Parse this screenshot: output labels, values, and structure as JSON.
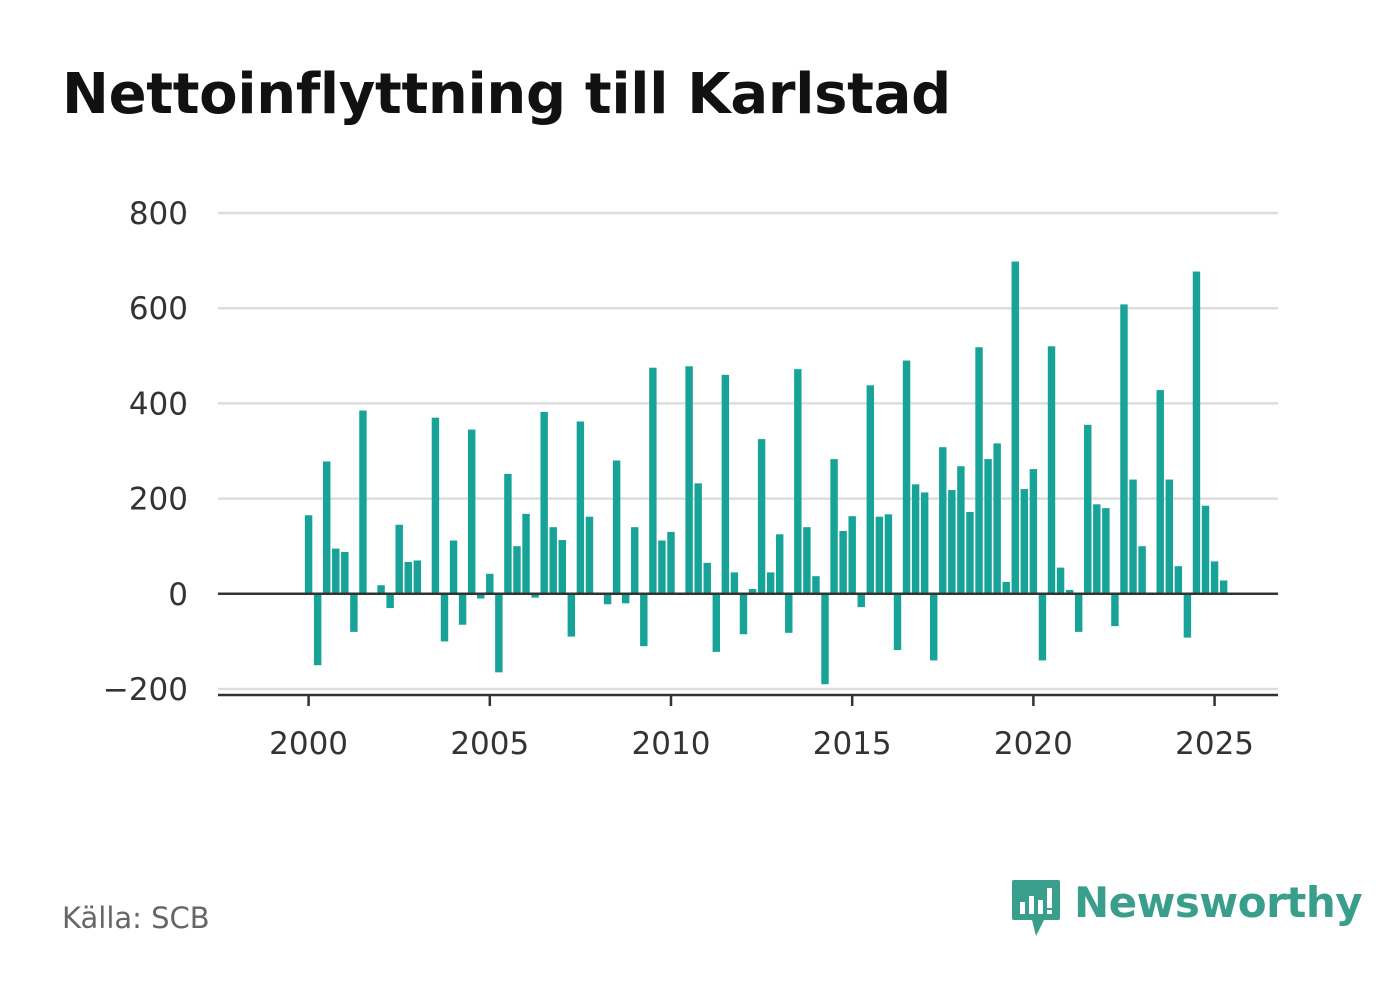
{
  "title": "Nettoinflyttning till Karlstad",
  "source": "Källa: SCB",
  "brand": {
    "name": "Newsworthy",
    "icon": "newsworthy-logo-icon",
    "color": "#3a9e8c"
  },
  "colors": {
    "bar": "#17a398",
    "grid": "#dddddd",
    "axis": "#333333"
  },
  "chart_data": {
    "type": "bar",
    "title": "Nettoinflyttning till Karlstad",
    "xlabel": "",
    "ylabel": "",
    "ylim": [
      -200,
      800
    ],
    "xlim": [
      1997.5,
      2026.75
    ],
    "grid": true,
    "yticks": [
      -200,
      0,
      200,
      400,
      600,
      800
    ],
    "ytick_labels": [
      "−200",
      "0",
      "200",
      "400",
      "600",
      "800"
    ],
    "xticks": [
      2000,
      2005,
      2010,
      2015,
      2020,
      2025
    ],
    "xtick_labels": [
      "2000",
      "2005",
      "2010",
      "2015",
      "2020",
      "2025"
    ],
    "frequency": "quarterly",
    "start": "2000 Q1",
    "values": [
      165,
      -150,
      278,
      95,
      88,
      -80,
      385,
      0,
      18,
      -30,
      145,
      67,
      70,
      0,
      370,
      -100,
      112,
      -65,
      345,
      -10,
      42,
      -165,
      252,
      100,
      168,
      -8,
      382,
      140,
      113,
      -90,
      362,
      162,
      0,
      -22,
      280,
      -20,
      140,
      -110,
      475,
      112,
      130,
      0,
      478,
      232,
      65,
      -122,
      460,
      45,
      -85,
      10,
      325,
      45,
      125,
      -82,
      472,
      140,
      37,
      -190,
      283,
      132,
      163,
      -28,
      438,
      162,
      167,
      -118,
      490,
      230,
      213,
      -140,
      308,
      218,
      268,
      172,
      518,
      283,
      316,
      25,
      698,
      220,
      262,
      -140,
      520,
      55,
      8,
      -80,
      355,
      188,
      180,
      -68,
      608,
      240,
      100,
      0,
      428,
      240,
      58,
      -92,
      677,
      185,
      68,
      28
    ]
  }
}
